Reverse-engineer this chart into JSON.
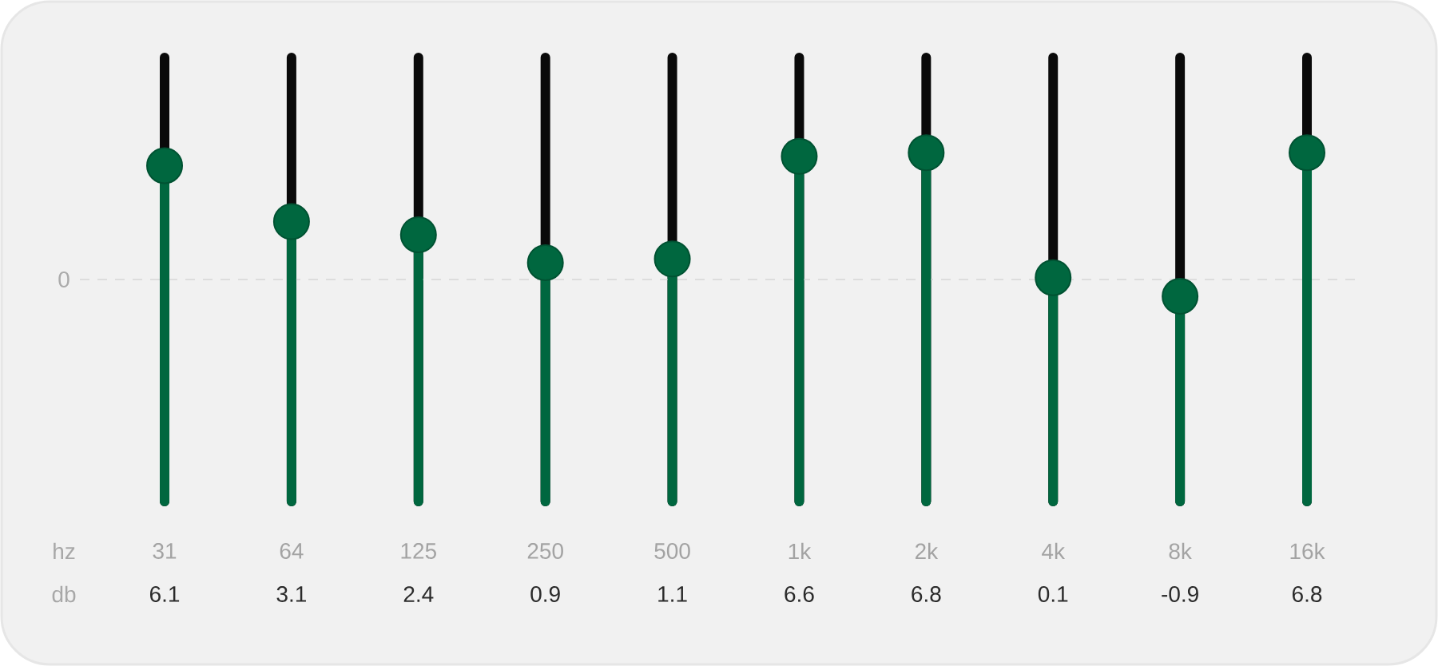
{
  "chart_data": {
    "type": "lollipop",
    "xlabel": "hz",
    "ylabel": "db",
    "categories": [
      "31",
      "64",
      "125",
      "250",
      "500",
      "1k",
      "2k",
      "4k",
      "8k",
      "16k"
    ],
    "values": [
      6.1,
      3.1,
      2.4,
      0.9,
      1.1,
      6.6,
      6.8,
      0.1,
      -0.9,
      6.8
    ],
    "color": "#00673f",
    "marker": "circle",
    "data_labels": true,
    "grid": "x",
    "ref_lines": [
      {
        "axis": "y",
        "value": 0,
        "label": "0",
        "color": "#dddddd",
        "line_style": "dashed"
      }
    ]
  }
}
